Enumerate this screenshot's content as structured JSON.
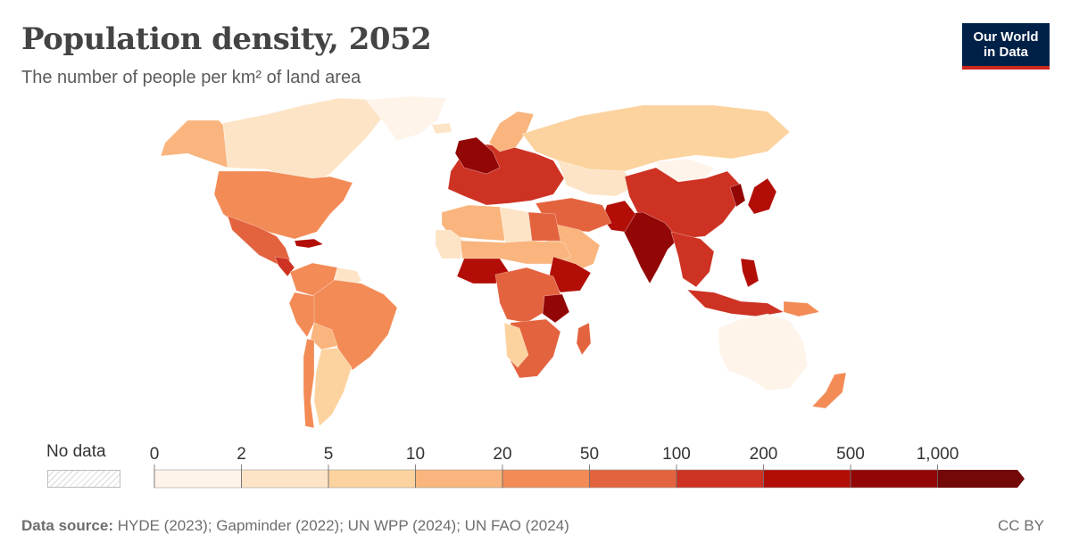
{
  "title": "Population density, 2052",
  "subtitle": "The number of people per km² of land area",
  "logo": {
    "line1": "Our World",
    "line2": "in Data"
  },
  "legend": {
    "no_data_label": "No data",
    "tick_labels": [
      "0",
      "2",
      "5",
      "10",
      "20",
      "50",
      "100",
      "200",
      "500",
      "1,000"
    ],
    "colors": [
      "#fef4ea",
      "#fde4c6",
      "#fcd39f",
      "#f9b57d",
      "#f38b56",
      "#e4633f",
      "#cd3223",
      "#b20e07",
      "#930606",
      "#720808"
    ]
  },
  "source": {
    "label": "Data source:",
    "text": "HYDE (2023); Gapminder (2022); UN WPP (2024); UN FAO (2024)"
  },
  "license": "CC BY",
  "regions": [
    {
      "name": "Canada",
      "color": "#fde4c6"
    },
    {
      "name": "Alaska",
      "color": "#f9b57d"
    },
    {
      "name": "Greenland",
      "color": "#fef4ea"
    },
    {
      "name": "United States",
      "color": "#f38b56"
    },
    {
      "name": "Mexico",
      "color": "#e4633f"
    },
    {
      "name": "Central America",
      "color": "#cd3223"
    },
    {
      "name": "Caribbean",
      "color": "#b20e07"
    },
    {
      "name": "Colombia and Venezuela",
      "color": "#f38b56"
    },
    {
      "name": "Guianas",
      "color": "#fde4c6"
    },
    {
      "name": "Brazil",
      "color": "#f38b56"
    },
    {
      "name": "Peru",
      "color": "#f38b56"
    },
    {
      "name": "Bolivia",
      "color": "#f9b57d"
    },
    {
      "name": "Argentina",
      "color": "#fcd39f"
    },
    {
      "name": "Chile",
      "color": "#f38b56"
    },
    {
      "name": "Europe",
      "color": "#cd3223"
    },
    {
      "name": "Benelux and UK",
      "color": "#930606"
    },
    {
      "name": "Scandinavia",
      "color": "#f9b57d"
    },
    {
      "name": "Iceland",
      "color": "#fde4c6"
    },
    {
      "name": "Russia",
      "color": "#fcd39f"
    },
    {
      "name": "Kazakhstan",
      "color": "#fde4c6"
    },
    {
      "name": "Mongolia",
      "color": "#fef4ea"
    },
    {
      "name": "China",
      "color": "#cd3223"
    },
    {
      "name": "India",
      "color": "#930606"
    },
    {
      "name": "Pakistan",
      "color": "#b20e07"
    },
    {
      "name": "Middle East",
      "color": "#e4633f"
    },
    {
      "name": "Arabian Peninsula",
      "color": "#f9b57d"
    },
    {
      "name": "North Africa",
      "color": "#f9b57d"
    },
    {
      "name": "Libya",
      "color": "#fde4c6"
    },
    {
      "name": "Western Sahara and Mauritania",
      "color": "#fde4c6"
    },
    {
      "name": "Egypt",
      "color": "#e4633f"
    },
    {
      "name": "Sahel",
      "color": "#f9b57d"
    },
    {
      "name": "Nigeria",
      "color": "#b20e07"
    },
    {
      "name": "Ethiopia",
      "color": "#b20e07"
    },
    {
      "name": "Central Africa",
      "color": "#e4633f"
    },
    {
      "name": "Great Lakes",
      "color": "#930606"
    },
    {
      "name": "Southern Africa",
      "color": "#e4633f"
    },
    {
      "name": "Namibia and Botswana",
      "color": "#fcd39f"
    },
    {
      "name": "Madagascar",
      "color": "#e4633f"
    },
    {
      "name": "Southeast Asia",
      "color": "#cd3223"
    },
    {
      "name": "Indonesia",
      "color": "#cd3223"
    },
    {
      "name": "Philippines",
      "color": "#b20e07"
    },
    {
      "name": "Japan",
      "color": "#b20e07"
    },
    {
      "name": "Korea",
      "color": "#930606"
    },
    {
      "name": "Papua New Guinea",
      "color": "#f38b56"
    },
    {
      "name": "Australia",
      "color": "#fef4ea"
    },
    {
      "name": "New Zealand",
      "color": "#f38b56"
    }
  ]
}
